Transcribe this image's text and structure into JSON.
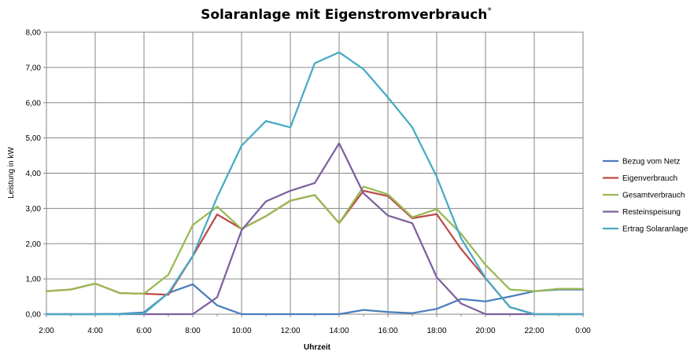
{
  "chart_data": {
    "type": "line",
    "title": "Solaranlage mit Eigenstromverbrauch",
    "title_superscript": "*",
    "xlabel": "Uhrzeit",
    "ylabel": "Leistung in kW",
    "ylim": [
      0,
      8
    ],
    "yticks": [
      "0,00",
      "1,00",
      "2,00",
      "3,00",
      "4,00",
      "5,00",
      "6,00",
      "7,00",
      "8,00"
    ],
    "x": [
      2,
      3,
      4,
      5,
      6,
      7,
      8,
      9,
      10,
      11,
      12,
      13,
      14,
      15,
      16,
      17,
      18,
      19,
      20,
      21,
      22,
      23,
      24
    ],
    "xticks": [
      "2:00",
      "4:00",
      "6:00",
      "8:00",
      "10:00",
      "12:00",
      "14:00",
      "16:00",
      "18:00",
      "20:00",
      "22:00",
      "0:00"
    ],
    "grid": true,
    "legend_position": "right",
    "series": [
      {
        "name": "Bezug vom Netz",
        "color": "#4a7ebb",
        "values": [
          0,
          0,
          0,
          0.01,
          0.05,
          0.6,
          0.85,
          0.25,
          0,
          0,
          0,
          0,
          0,
          0.12,
          0.06,
          0.03,
          0.15,
          0.43,
          0.36,
          0.5,
          0.65,
          0.7,
          0.7
        ]
      },
      {
        "name": "Eigenverbrauch",
        "color": "#be4b48",
        "values": [
          0.65,
          0.7,
          0.87,
          0.6,
          0.58,
          0.55,
          1.65,
          2.83,
          2.42,
          2.78,
          3.22,
          3.38,
          2.58,
          3.5,
          3.35,
          2.72,
          2.84,
          1.85,
          1.02,
          0.2,
          0,
          0,
          0
        ]
      },
      {
        "name": "Gesamtverbrauch",
        "color": "#98b954",
        "values": [
          0.65,
          0.7,
          0.87,
          0.6,
          0.58,
          1.12,
          2.53,
          3.05,
          2.42,
          2.78,
          3.22,
          3.38,
          2.58,
          3.62,
          3.4,
          2.75,
          2.98,
          2.28,
          1.4,
          0.7,
          0.65,
          0.72,
          0.72
        ]
      },
      {
        "name": "Resteinspeisung",
        "color": "#7d60a0",
        "values": [
          0,
          0,
          0,
          0,
          0,
          0,
          0,
          0.48,
          2.38,
          3.2,
          3.5,
          3.72,
          4.85,
          3.43,
          2.8,
          2.58,
          1.05,
          0.3,
          0,
          0,
          0,
          0,
          0
        ]
      },
      {
        "name": "Ertrag Solaranlage",
        "color": "#46aac5",
        "values": [
          0,
          0,
          0,
          0,
          0.02,
          0.6,
          1.65,
          3.32,
          4.78,
          5.48,
          5.3,
          7.12,
          7.43,
          6.95,
          6.15,
          5.3,
          3.9,
          2.15,
          1.03,
          0.2,
          0,
          0,
          0
        ]
      }
    ]
  }
}
